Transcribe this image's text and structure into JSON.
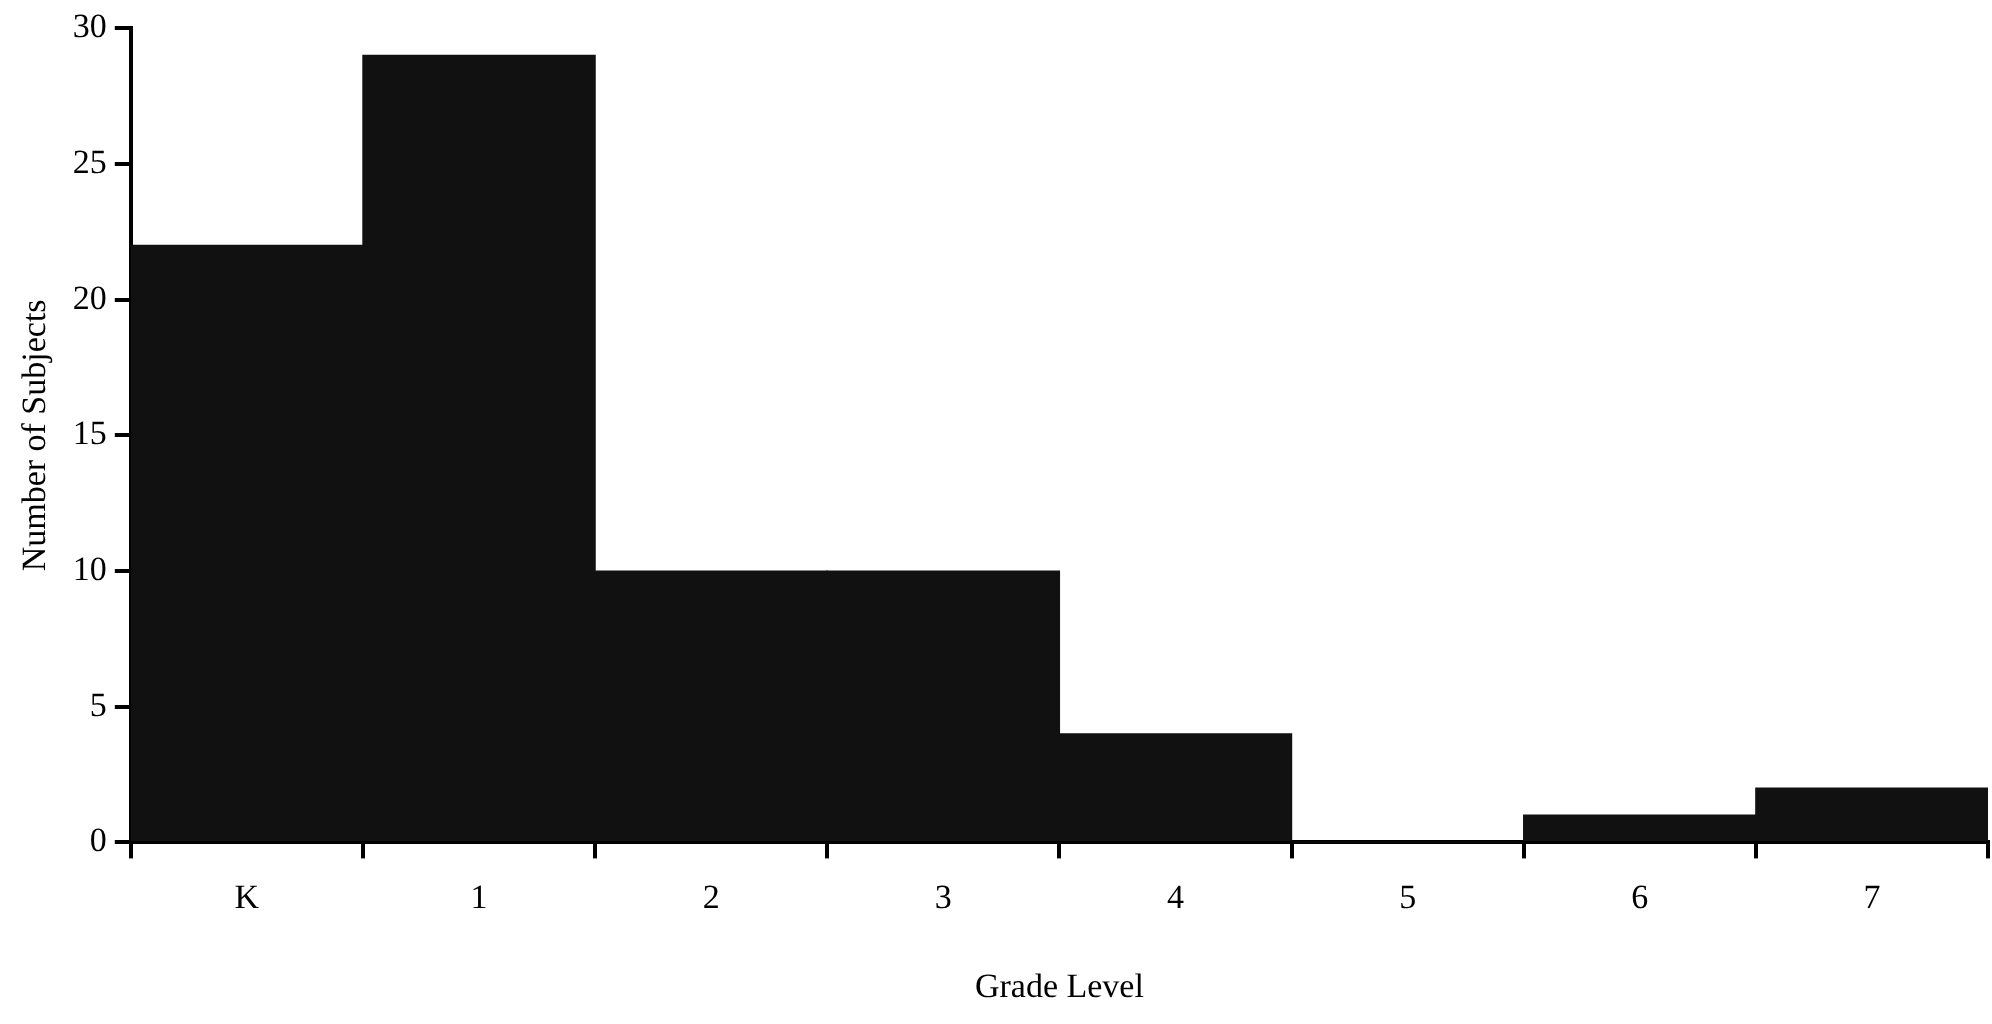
{
  "chart_data": {
    "type": "bar",
    "xlabel": "Grade Level",
    "ylabel": "Number of Subjects",
    "categories": [
      "K",
      "1",
      "2",
      "3",
      "4",
      "5",
      "6",
      "7"
    ],
    "values": [
      22,
      29,
      10,
      10,
      4,
      0,
      1,
      2
    ],
    "color": "#111111",
    "ylim": [
      0,
      30
    ],
    "yticks": [
      0,
      5,
      10,
      15,
      20,
      25,
      30
    ],
    "grid": false,
    "legend": false
  }
}
